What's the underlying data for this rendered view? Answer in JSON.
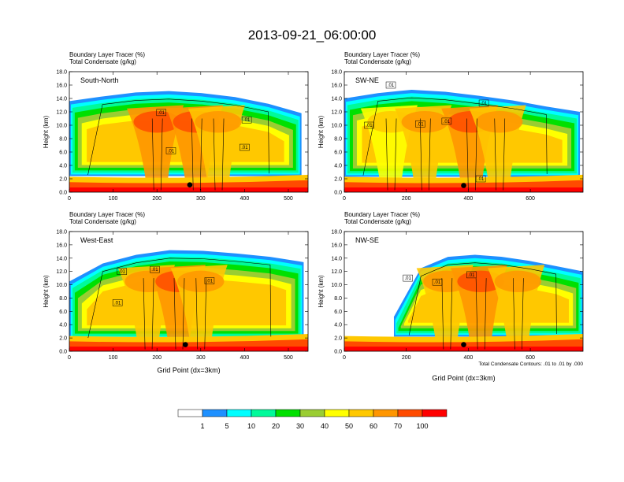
{
  "title": "2013-09-21_06:00:00",
  "colorbar": {
    "labels": [
      "1",
      "5",
      "10",
      "20",
      "30",
      "40",
      "50",
      "60",
      "70",
      "100"
    ],
    "colors": [
      "#ffffff",
      "#1e90ff",
      "#00ffff",
      "#00fa9a",
      "#00e000",
      "#9acd32",
      "#ffff00",
      "#ffc800",
      "#ff9600",
      "#ff4b00",
      "#ff0000"
    ]
  },
  "contour_note": "Total Condensate Contours: .01 to .01 by .000",
  "chart_data": [
    {
      "type": "heatmap",
      "panel_label": "South-North",
      "subtitle_lines": [
        "Boundary Layer Tracer   (%)",
        "Total Condensate   (g/kg)"
      ],
      "ylabel": "Height (km)",
      "xlabel": "",
      "xlim": [
        0,
        545
      ],
      "ylim": [
        0,
        18
      ],
      "xticks": [
        "0",
        "100",
        "200",
        "300",
        "400",
        "500"
      ],
      "xtick_values": [
        0,
        100,
        200,
        300,
        400,
        500
      ],
      "yticks": [
        "0.0",
        "2.0",
        "4.0",
        "6.0",
        "8.0",
        "10.0",
        "12.0",
        "14.0",
        "16.0",
        "18.0"
      ],
      "cloud": {
        "x_start": 0,
        "x_end": 530,
        "top_km": [
          13.6,
          14.3,
          14.9,
          15.1,
          14.8,
          14.2,
          13.2,
          11.8
        ],
        "base_km": 2.4
      },
      "cores": [
        {
          "x": 200,
          "intensity": 70
        },
        {
          "x": 290,
          "intensity": 70
        },
        {
          "x": 340,
          "intensity": 60
        }
      ],
      "contour_labels": [
        {
          "x": 210,
          "y": 11.9,
          "text": ".01"
        },
        {
          "x": 232,
          "y": 6.2,
          "text": ".01"
        },
        {
          "x": 405,
          "y": 10.8,
          "text": ".01"
        },
        {
          "x": 400,
          "y": 6.7,
          "text": ".01"
        }
      ],
      "marker": {
        "x": 275,
        "y": 1.1
      }
    },
    {
      "type": "heatmap",
      "panel_label": "SW-NE",
      "subtitle_lines": [
        "Boundary Layer Tracer   (%)",
        "Total Condensate   (g/kg)"
      ],
      "ylabel": "Height (km)",
      "xlabel": "",
      "xlim": [
        0,
        770
      ],
      "ylim": [
        0,
        18
      ],
      "xticks": [
        "0",
        "200",
        "400",
        "600"
      ],
      "xtick_values": [
        0,
        200,
        400,
        600
      ],
      "yticks": [
        "0.0",
        "2.0",
        "4.0",
        "6.0",
        "8.0",
        "10.0",
        "12.0",
        "14.0",
        "16.0",
        "18.0"
      ],
      "cloud": {
        "x_start": 0,
        "x_end": 760,
        "top_km": [
          14.0,
          14.8,
          15.3,
          15.0,
          14.4,
          13.7,
          12.8,
          12.0
        ],
        "base_km": 2.3
      },
      "cores": [
        {
          "x": 150,
          "intensity": 50
        },
        {
          "x": 260,
          "intensity": 60
        },
        {
          "x": 410,
          "intensity": 70
        },
        {
          "x": 500,
          "intensity": 60
        }
      ],
      "contour_labels": [
        {
          "x": 150,
          "y": 16.0,
          "text": ".01"
        },
        {
          "x": 80,
          "y": 10.0,
          "text": ".01"
        },
        {
          "x": 245,
          "y": 10.2,
          "text": ".01"
        },
        {
          "x": 330,
          "y": 10.6,
          "text": ".01"
        },
        {
          "x": 450,
          "y": 13.3,
          "text": ".01"
        },
        {
          "x": 440,
          "y": 2.0,
          "text": ".01"
        }
      ],
      "marker": {
        "x": 385,
        "y": 1.0
      }
    },
    {
      "type": "heatmap",
      "panel_label": "West-East",
      "subtitle_lines": [
        "Boundary Layer Tracer   (%)",
        "Total Condensate   (g/kg)"
      ],
      "ylabel": "Height (km)",
      "xlabel": "Grid Point (dx=3km)",
      "xlim": [
        0,
        545
      ],
      "ylim": [
        0,
        18
      ],
      "xticks": [
        "0",
        "100",
        "200",
        "300",
        "400",
        "500"
      ],
      "xtick_values": [
        0,
        100,
        200,
        300,
        400,
        500
      ],
      "yticks": [
        "0.0",
        "2.0",
        "4.0",
        "6.0",
        "8.0",
        "10.0",
        "12.0",
        "14.0",
        "16.0",
        "18.0"
      ],
      "cloud": {
        "x_start": 0,
        "x_end": 535,
        "top_km": [
          10.5,
          13.2,
          14.5,
          15.2,
          15.1,
          14.7,
          14.2,
          13.4
        ],
        "base_km": 1.8
      },
      "cores": [
        {
          "x": 180,
          "intensity": 60
        },
        {
          "x": 250,
          "intensity": 70
        },
        {
          "x": 300,
          "intensity": 60
        }
      ],
      "contour_labels": [
        {
          "x": 120,
          "y": 12.0,
          "text": ".01"
        },
        {
          "x": 195,
          "y": 12.3,
          "text": ".01"
        },
        {
          "x": 110,
          "y": 7.3,
          "text": ".01"
        },
        {
          "x": 320,
          "y": 10.6,
          "text": ".01"
        }
      ],
      "marker": {
        "x": 265,
        "y": 1.0
      }
    },
    {
      "type": "heatmap",
      "panel_label": "NW-SE",
      "subtitle_lines": [
        "Boundary Layer Tracer   (%)",
        "Total Condensate   (g/kg)"
      ],
      "ylabel": "Height (km)",
      "xlabel": "Grid Point (dx=3km)",
      "xlim": [
        0,
        770
      ],
      "ylim": [
        0,
        18
      ],
      "xticks": [
        "0",
        "200",
        "400",
        "600"
      ],
      "xtick_values": [
        0,
        200,
        400,
        600
      ],
      "yticks": [
        "0.0",
        "2.0",
        "4.0",
        "6.0",
        "8.0",
        "10.0",
        "12.0",
        "14.0",
        "16.0",
        "18.0"
      ],
      "cloud": {
        "x_start": 160,
        "x_end": 770,
        "top_km": [
          5.2,
          12.5,
          14.2,
          14.5,
          14.2,
          13.6,
          12.8,
          12.0
        ],
        "base_km": 2.2
      },
      "cores": [
        {
          "x": 330,
          "intensity": 60
        },
        {
          "x": 440,
          "intensity": 70
        },
        {
          "x": 560,
          "intensity": 60
        }
      ],
      "contour_labels": [
        {
          "x": 205,
          "y": 11.0,
          "text": ".01"
        },
        {
          "x": 300,
          "y": 10.4,
          "text": ".01"
        },
        {
          "x": 410,
          "y": 11.5,
          "text": ".01"
        }
      ],
      "marker": {
        "x": 385,
        "y": 1.0
      }
    }
  ]
}
